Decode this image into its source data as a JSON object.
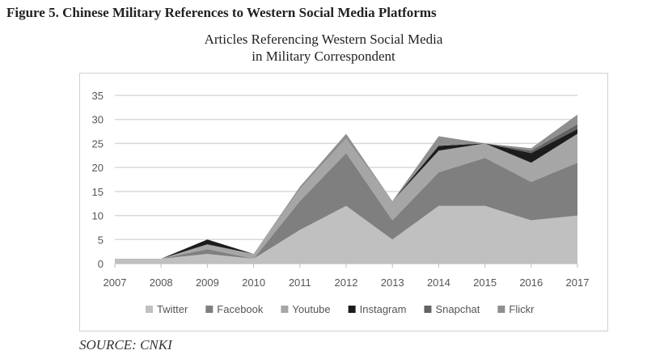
{
  "figure_title": "Figure 5. Chinese Military References to Western Social Media Platforms",
  "source": "SOURCE: CNKI",
  "chart_data": {
    "type": "area",
    "stacked": true,
    "title_line1": "Articles Referencing Western Social Media",
    "title_line2": "in Military Correspondent",
    "categories": [
      "2007",
      "2008",
      "2009",
      "2010",
      "2011",
      "2012",
      "2013",
      "2014",
      "2015",
      "2016",
      "2017"
    ],
    "ylim": [
      0,
      35
    ],
    "yticks": [
      0,
      5,
      10,
      15,
      20,
      25,
      30,
      35
    ],
    "grid": true,
    "legend_position": "bottom",
    "series": [
      {
        "name": "Twitter",
        "color": "#c0c0c0",
        "values": [
          1,
          1,
          2,
          1,
          7,
          12,
          5,
          12,
          12,
          9,
          10
        ]
      },
      {
        "name": "Facebook",
        "color": "#7f7f7f",
        "values": [
          0,
          0,
          1,
          0,
          6,
          11,
          4,
          7,
          10,
          8,
          11
        ]
      },
      {
        "name": "Youtube",
        "color": "#a6a6a6",
        "values": [
          0,
          0,
          1,
          1,
          2.5,
          3,
          4,
          4.5,
          3,
          4,
          6
        ]
      },
      {
        "name": "Instagram",
        "color": "#1c1c1c",
        "values": [
          0,
          0,
          1,
          0,
          0,
          0,
          0,
          1,
          0,
          2,
          1
        ]
      },
      {
        "name": "Snapchat",
        "color": "#636363",
        "values": [
          0,
          0,
          0,
          0,
          0,
          0,
          0,
          0,
          0,
          0.5,
          1
        ]
      },
      {
        "name": "Flickr",
        "color": "#8f8f8f",
        "values": [
          0,
          0,
          0,
          0,
          0.5,
          1,
          0,
          2,
          0,
          0.5,
          2
        ]
      }
    ]
  }
}
